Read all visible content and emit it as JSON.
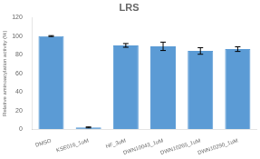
{
  "chart_data": {
    "type": "bar",
    "title": "LRS",
    "ylabel": "Relative aminoacylation activity (%)",
    "categories": [
      "DMSO",
      "KSE016_1uM",
      "HF_3uM",
      "DWN10043_1uM",
      "DWN10265_1uM",
      "DWN10290_1uM"
    ],
    "values": [
      100,
      2,
      90,
      89,
      84,
      86
    ],
    "errors": [
      0.5,
      0.5,
      2.0,
      4.5,
      3.5,
      2.5
    ],
    "color": "#5b9bd5",
    "ylim": [
      0,
      120
    ],
    "yticks": [
      0,
      20,
      40,
      60,
      80,
      100,
      120
    ],
    "grid": false
  }
}
